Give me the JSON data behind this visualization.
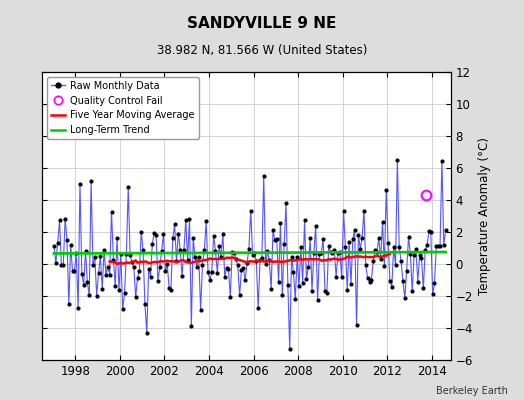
{
  "title": "SANDYVILLE 9 NE",
  "subtitle": "38.982 N, 81.566 W (United States)",
  "ylabel": "Temperature Anomaly (°C)",
  "credit": "Berkeley Earth",
  "ylim": [
    -6,
    12
  ],
  "yticks": [
    -6,
    -4,
    -2,
    0,
    2,
    4,
    6,
    8,
    10,
    12
  ],
  "xlim_start": 1996.5,
  "xlim_end": 2014.85,
  "xticks": [
    1998,
    2000,
    2002,
    2004,
    2006,
    2008,
    2010,
    2012,
    2014
  ],
  "background_color": "#dddddd",
  "plot_bg_color": "#ffffff",
  "raw_line_color": "#5555ff",
  "raw_marker_color": "#000000",
  "moving_avg_color": "#ff0000",
  "trend_color": "#00cc00",
  "qc_fail_color": "#ff00ff",
  "long_term_trend_intercept": 0.7,
  "long_term_trend_slope": 0.005,
  "qc_fail_x": 2013.75,
  "qc_fail_y": 4.3,
  "seed": 42
}
